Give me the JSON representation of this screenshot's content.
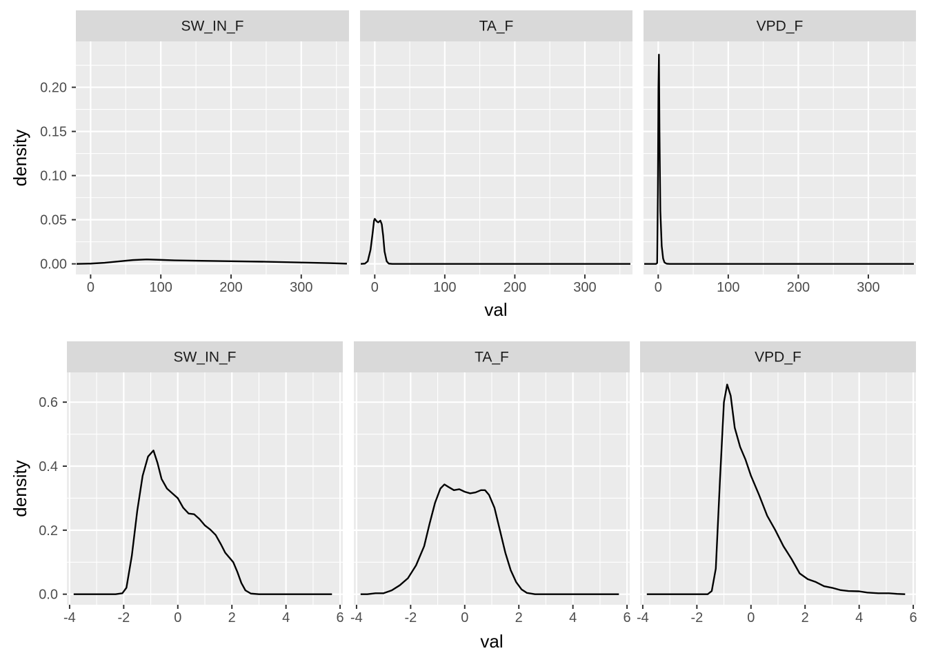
{
  "colors": {
    "panel_background": "#ebebeb",
    "strip_background": "#d9d9d9",
    "grid": "#ffffff",
    "line": "#000000",
    "tick_label": "#4d4d4d"
  },
  "chart_data": [
    {
      "type": "line",
      "title": "",
      "xlabel": "val",
      "ylabel": "density",
      "grid": true,
      "facets": [
        "SW_IN_F",
        "TA_F",
        "VPD_F"
      ],
      "xlim": [
        -21,
        368
      ],
      "ylim": [
        -0.012,
        0.252
      ],
      "x_ticks": [
        0,
        100,
        200,
        300
      ],
      "y_ticks": [
        0.0,
        0.05,
        0.1,
        0.15,
        0.2
      ],
      "x_tick_labels": [
        "0",
        "100",
        "200",
        "300"
      ],
      "y_tick_labels": [
        "0.00",
        "0.05",
        "0.10",
        "0.15",
        "0.20"
      ],
      "series": [
        {
          "name": "SW_IN_F",
          "points": [
            [
              -20,
              0.0
            ],
            [
              0,
              0.0003
            ],
            [
              20,
              0.0012
            ],
            [
              40,
              0.0028
            ],
            [
              60,
              0.0043
            ],
            [
              80,
              0.005
            ],
            [
              100,
              0.0045
            ],
            [
              120,
              0.004
            ],
            [
              150,
              0.0036
            ],
            [
              200,
              0.003
            ],
            [
              250,
              0.0024
            ],
            [
              300,
              0.0015
            ],
            [
              340,
              0.0008
            ],
            [
              365,
              0.0002
            ]
          ]
        },
        {
          "name": "TA_F",
          "points": [
            [
              -20,
              0.0
            ],
            [
              -14,
              0.0003
            ],
            [
              -10,
              0.003
            ],
            [
              -6,
              0.016
            ],
            [
              -3,
              0.035
            ],
            [
              -1,
              0.049
            ],
            [
              0,
              0.051
            ],
            [
              3,
              0.048
            ],
            [
              5,
              0.047
            ],
            [
              8,
              0.049
            ],
            [
              10,
              0.045
            ],
            [
              12,
              0.032
            ],
            [
              14,
              0.014
            ],
            [
              17,
              0.003
            ],
            [
              20,
              0.0003
            ],
            [
              25,
              0.0
            ],
            [
              365,
              0.0
            ]
          ]
        },
        {
          "name": "VPD_F",
          "points": [
            [
              -20,
              0.0
            ],
            [
              -3,
              0.0
            ],
            [
              -1.5,
              0.001
            ],
            [
              -0.5,
              0.08
            ],
            [
              0.3,
              0.2
            ],
            [
              1,
              0.237
            ],
            [
              1.8,
              0.15
            ],
            [
              3,
              0.06
            ],
            [
              5,
              0.02
            ],
            [
              7,
              0.006
            ],
            [
              9,
              0.0015
            ],
            [
              12,
              0.0002
            ],
            [
              16,
              0.0
            ],
            [
              365,
              0.0
            ]
          ]
        }
      ]
    },
    {
      "type": "line",
      "title": "",
      "xlabel": "val",
      "ylabel": "density",
      "grid": true,
      "facets": [
        "SW_IN_F",
        "TA_F",
        "VPD_F"
      ],
      "xlim": [
        -4.1,
        6.1
      ],
      "ylim": [
        -0.033,
        0.693
      ],
      "x_ticks": [
        -4,
        -2,
        0,
        2,
        4,
        6
      ],
      "y_ticks": [
        0.0,
        0.2,
        0.4,
        0.6
      ],
      "x_tick_labels": [
        "-4",
        "-2",
        "0",
        "2",
        "4",
        "6"
      ],
      "y_tick_labels": [
        "0.0",
        "0.2",
        "0.4",
        "0.6"
      ],
      "series": [
        {
          "name": "SW_IN_F",
          "points": [
            [
              -3.85,
              0.0
            ],
            [
              -2.3,
              0.0
            ],
            [
              -2.05,
              0.003
            ],
            [
              -1.9,
              0.02
            ],
            [
              -1.7,
              0.12
            ],
            [
              -1.5,
              0.26
            ],
            [
              -1.3,
              0.37
            ],
            [
              -1.1,
              0.43
            ],
            [
              -0.9,
              0.449
            ],
            [
              -0.75,
              0.41
            ],
            [
              -0.6,
              0.36
            ],
            [
              -0.4,
              0.33
            ],
            [
              -0.2,
              0.315
            ],
            [
              0.0,
              0.3
            ],
            [
              0.2,
              0.27
            ],
            [
              0.4,
              0.252
            ],
            [
              0.6,
              0.25
            ],
            [
              0.8,
              0.235
            ],
            [
              1.0,
              0.215
            ],
            [
              1.2,
              0.202
            ],
            [
              1.4,
              0.185
            ],
            [
              1.6,
              0.155
            ],
            [
              1.75,
              0.13
            ],
            [
              1.9,
              0.115
            ],
            [
              2.05,
              0.1
            ],
            [
              2.2,
              0.07
            ],
            [
              2.35,
              0.035
            ],
            [
              2.5,
              0.012
            ],
            [
              2.7,
              0.002
            ],
            [
              3.0,
              0.0
            ],
            [
              5.7,
              0.0
            ]
          ]
        },
        {
          "name": "TA_F",
          "points": [
            [
              -3.85,
              0.0
            ],
            [
              -3.6,
              0.0
            ],
            [
              -3.3,
              0.003
            ],
            [
              -3.0,
              0.003
            ],
            [
              -2.7,
              0.012
            ],
            [
              -2.4,
              0.028
            ],
            [
              -2.1,
              0.05
            ],
            [
              -1.8,
              0.09
            ],
            [
              -1.5,
              0.15
            ],
            [
              -1.3,
              0.22
            ],
            [
              -1.1,
              0.285
            ],
            [
              -0.9,
              0.33
            ],
            [
              -0.75,
              0.343
            ],
            [
              -0.6,
              0.335
            ],
            [
              -0.4,
              0.325
            ],
            [
              -0.2,
              0.328
            ],
            [
              0.0,
              0.32
            ],
            [
              0.2,
              0.315
            ],
            [
              0.4,
              0.318
            ],
            [
              0.6,
              0.325
            ],
            [
              0.75,
              0.325
            ],
            [
              0.9,
              0.31
            ],
            [
              1.1,
              0.27
            ],
            [
              1.3,
              0.2
            ],
            [
              1.5,
              0.13
            ],
            [
              1.7,
              0.075
            ],
            [
              1.9,
              0.038
            ],
            [
              2.1,
              0.015
            ],
            [
              2.3,
              0.004
            ],
            [
              2.6,
              0.0
            ],
            [
              5.7,
              0.0
            ]
          ]
        },
        {
          "name": "VPD_F",
          "points": [
            [
              -3.85,
              0.0
            ],
            [
              -1.6,
              0.0
            ],
            [
              -1.45,
              0.01
            ],
            [
              -1.3,
              0.08
            ],
            [
              -1.15,
              0.35
            ],
            [
              -1.0,
              0.6
            ],
            [
              -0.88,
              0.655
            ],
            [
              -0.75,
              0.62
            ],
            [
              -0.6,
              0.52
            ],
            [
              -0.4,
              0.46
            ],
            [
              -0.2,
              0.42
            ],
            [
              0.0,
              0.37
            ],
            [
              0.3,
              0.31
            ],
            [
              0.6,
              0.245
            ],
            [
              0.9,
              0.2
            ],
            [
              1.2,
              0.15
            ],
            [
              1.5,
              0.11
            ],
            [
              1.8,
              0.065
            ],
            [
              2.1,
              0.047
            ],
            [
              2.4,
              0.038
            ],
            [
              2.7,
              0.025
            ],
            [
              3.0,
              0.02
            ],
            [
              3.3,
              0.013
            ],
            [
              3.6,
              0.01
            ],
            [
              4.0,
              0.009
            ],
            [
              4.3,
              0.005
            ],
            [
              4.7,
              0.003
            ],
            [
              5.1,
              0.003
            ],
            [
              5.4,
              0.001
            ],
            [
              5.7,
              0.0
            ]
          ]
        }
      ]
    }
  ]
}
